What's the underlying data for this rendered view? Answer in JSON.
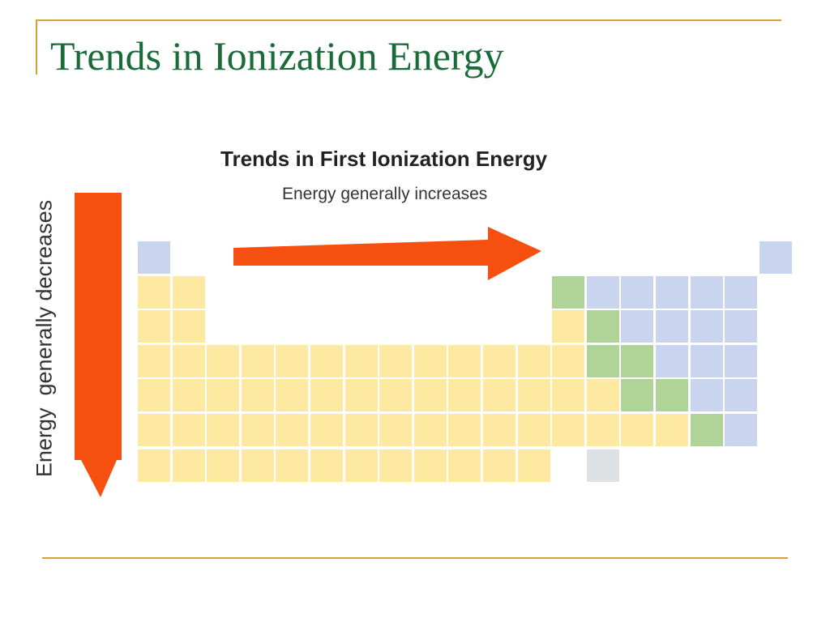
{
  "slide": {
    "title": "Trends in Ionization Energy"
  },
  "figure": {
    "title": "Trends in First Ionization Energy",
    "horizontal_label": "Energy generally increases",
    "vertical_label": "Energy  generally decreases"
  },
  "colors": {
    "title_green": "#1b6b3a",
    "rule_gold": "#d4a437",
    "arrow_orange": "#f5500f",
    "low_yellow": "#fde9a0",
    "mid_green": "#b0d497",
    "high_blue": "#c9d5ef",
    "other_gray": "#dde1e3"
  },
  "periodic_table": {
    "legend_note": "Cell color groups: Y = lower ionization energy (yellow), G = intermediate (green), B = higher (blue), X = unshaded (gray)",
    "rows": [
      "B.................B",
      "YY..........GBBBBB",
      "YY..........YGBBBB",
      "YYYYYYYYYYYYYGGBBB",
      "YYYYYYYYYYYYYYGGBB",
      "YYYYYYYYYYYYYYYYGB",
      "YYYYYYYYYYYY.X...."
    ]
  }
}
